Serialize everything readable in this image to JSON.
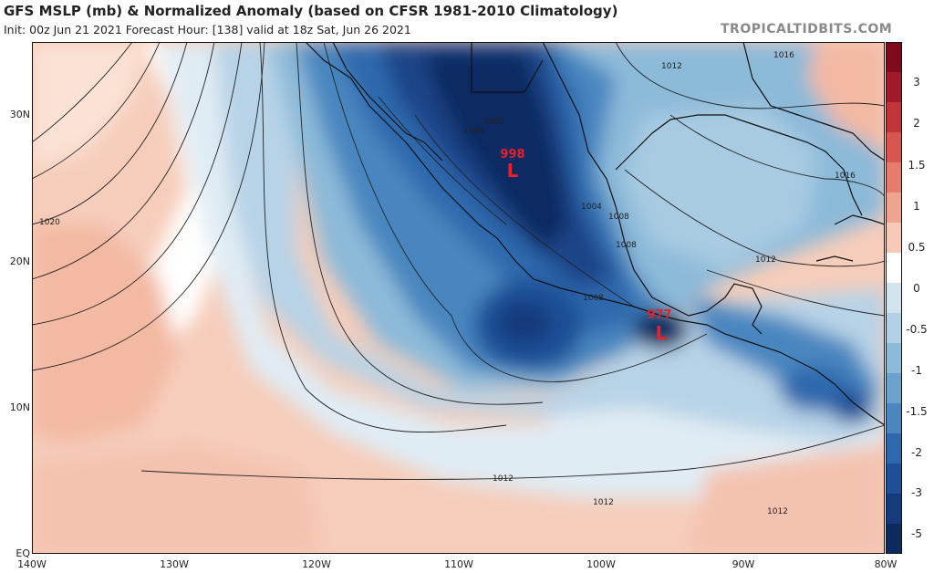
{
  "header": {
    "title": "GFS MSLP (mb) & Normalized Anomaly (based on CFSR 1981-2010 Climatology)",
    "subtitle": "Init: 00z Jun 21 2021   Forecast Hour: [138]   valid at 18z Sat, Jun 26 2021",
    "brand": "TROPICALTIDBITS.COM"
  },
  "axes": {
    "lat_labels": [
      "30N",
      "20N",
      "10N",
      "EQ"
    ],
    "lon_labels": [
      "140W",
      "130W",
      "120W",
      "110W",
      "100W",
      "90W",
      "80W"
    ]
  },
  "lows": [
    {
      "value": "998",
      "symbol": "L"
    },
    {
      "value": "977",
      "symbol": "L"
    }
  ],
  "isobar_labels": [
    "1020",
    "1016",
    "1016",
    "1012",
    "1012",
    "1012",
    "1012",
    "1012",
    "1008",
    "1008",
    "1008",
    "1004",
    "1004",
    "1000"
  ],
  "colorbar": {
    "labels": [
      "3",
      "2",
      "1.5",
      "1",
      "0.5",
      "0",
      "-0.5",
      "-1",
      "-1.5",
      "-2",
      "-3",
      "-5"
    ],
    "colors": [
      "#7e0a1c",
      "#a01a2c",
      "#c2333a",
      "#d8564f",
      "#e77c6e",
      "#f0a38f",
      "#f8c9b6",
      "#ffffff",
      "#d4e4ef",
      "#b3d1e6",
      "#8cbad9",
      "#6aa2cd",
      "#4a86bf",
      "#2f69ad",
      "#1f4f97",
      "#163b7c",
      "#0d2a5e"
    ]
  },
  "colors": {
    "land_outline": "#111111",
    "low_label": "#e8202a"
  }
}
